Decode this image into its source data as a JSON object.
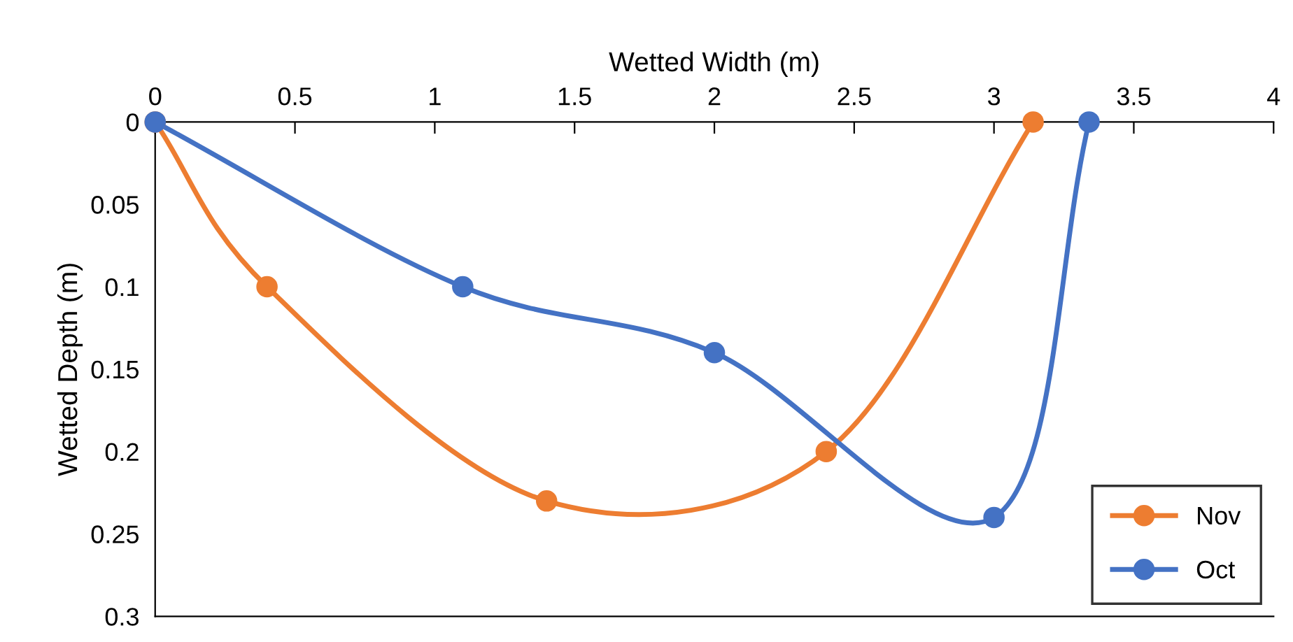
{
  "chart_data": {
    "type": "line",
    "xlabel": "Wetted Width (m)",
    "ylabel": "Wetted Depth (m)",
    "xlim": [
      0,
      4
    ],
    "xticks": [
      0,
      0.5,
      1,
      1.5,
      2,
      2.5,
      3,
      3.5,
      4
    ],
    "ylim": [
      0.3,
      0
    ],
    "yticks": [
      0,
      0.05,
      0.1,
      0.15,
      0.2,
      0.25,
      0.3
    ],
    "grid": false,
    "legend": "bottom right",
    "marker": "circle",
    "line_style": "solid",
    "series": [
      {
        "name": "Nov",
        "color": "#ed7d31",
        "x": [
          0,
          0.4,
          1.4,
          2.4,
          3.14
        ],
        "values": [
          0,
          0.1,
          0.23,
          0.2,
          0
        ]
      },
      {
        "name": "Oct",
        "color": "#4472c4",
        "x": [
          0,
          1.1,
          2,
          3,
          3.34
        ],
        "values": [
          0,
          0.1,
          0.14,
          0.24,
          0
        ]
      }
    ]
  }
}
